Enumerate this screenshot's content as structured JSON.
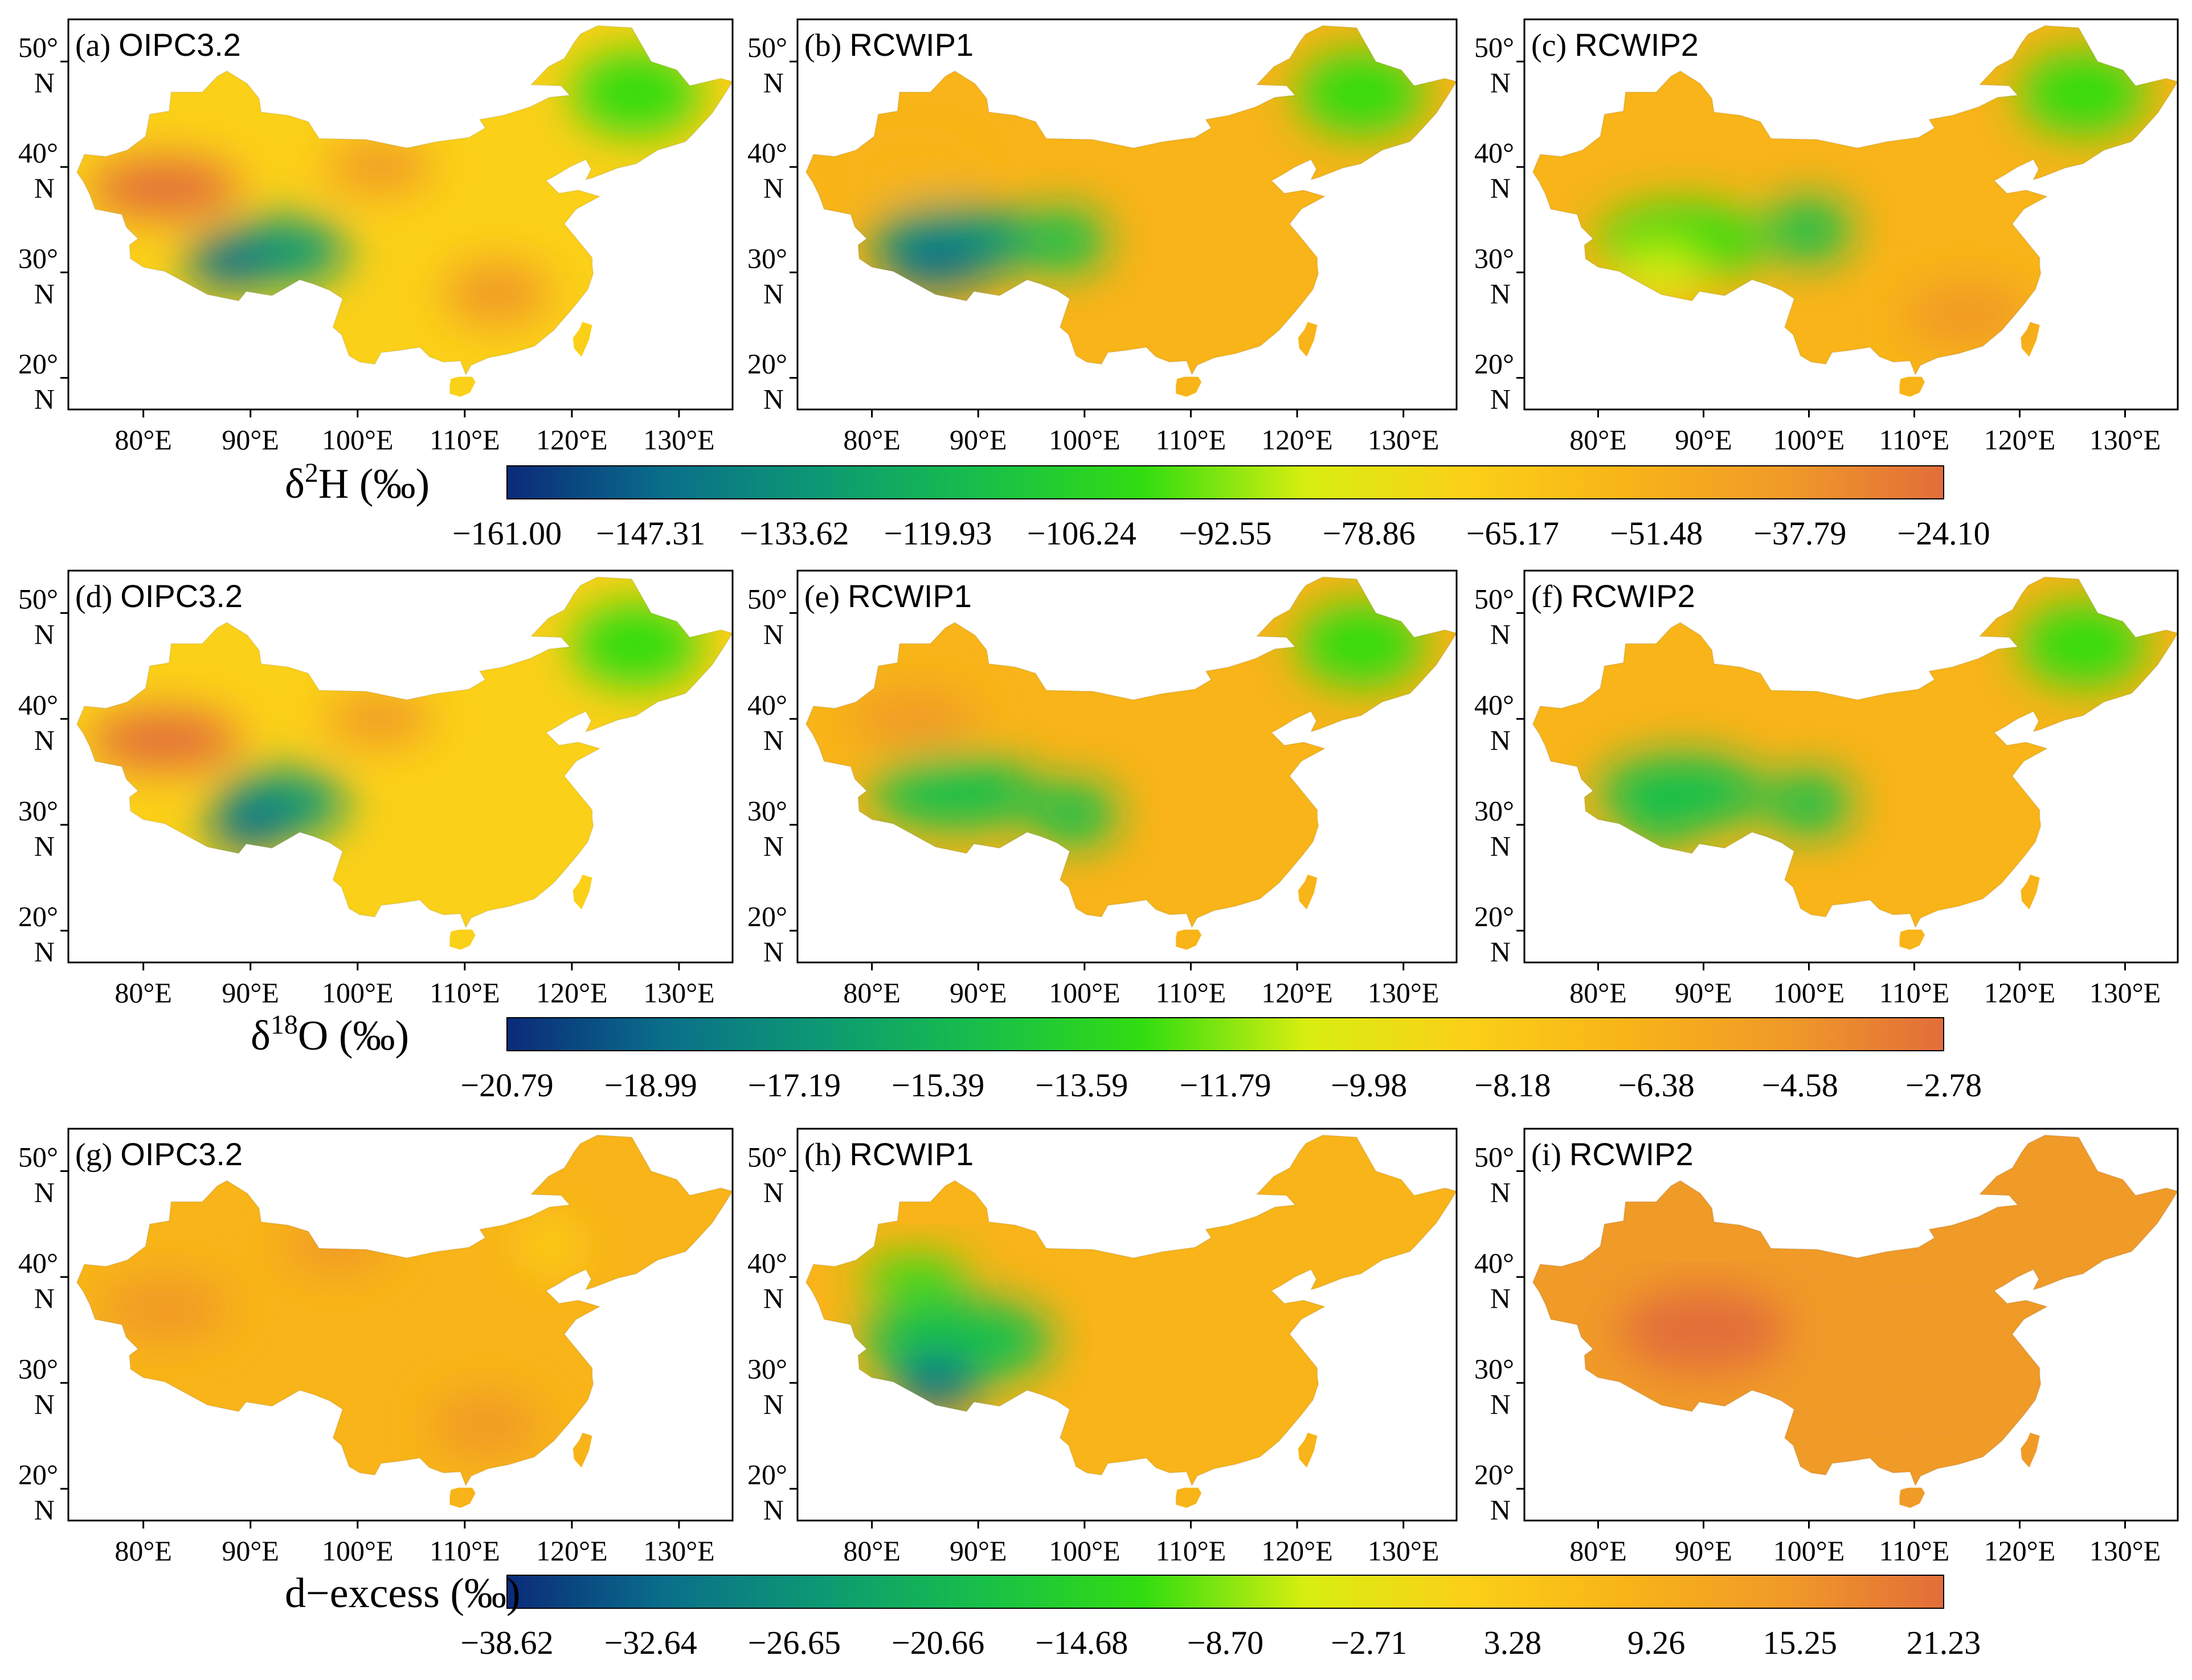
{
  "panels": [
    {
      "letter": "(a)",
      "model": "OIPC3.2",
      "variable": "d2H"
    },
    {
      "letter": "(b)",
      "model": "RCWIP1",
      "variable": "d2H"
    },
    {
      "letter": "(c)",
      "model": "RCWIP2",
      "variable": "d2H"
    },
    {
      "letter": "(d)",
      "model": "OIPC3.2",
      "variable": "d18O"
    },
    {
      "letter": "(e)",
      "model": "RCWIP1",
      "variable": "d18O"
    },
    {
      "letter": "(f)",
      "model": "RCWIP2",
      "variable": "d18O"
    },
    {
      "letter": "(g)",
      "model": "OIPC3.2",
      "variable": "dexcess"
    },
    {
      "letter": "(h)",
      "model": "RCWIP1",
      "variable": "dexcess"
    },
    {
      "letter": "(i)",
      "model": "RCWIP2",
      "variable": "dexcess"
    }
  ],
  "axes": {
    "lon_labels": [
      "80°E",
      "90°E",
      "100°E",
      "110°E",
      "120°E",
      "130°E"
    ],
    "lon_values": [
      80,
      90,
      100,
      110,
      120,
      130
    ],
    "lat_deg": [
      "50°",
      "40°",
      "30°",
      "20°"
    ],
    "lat_hemi": "N",
    "lat_values": [
      50,
      40,
      30,
      20
    ],
    "lon_range": [
      73,
      135
    ],
    "lat_range": [
      17,
      54
    ]
  },
  "colorbars": [
    {
      "variable": "d2H",
      "label_prefix": "δ",
      "label_sup": "2",
      "label_suffix": "H (‰)",
      "ticks": [
        "−161.00",
        "−147.31",
        "−133.62",
        "−119.93",
        "−106.24",
        "−92.55",
        "−78.86",
        "−65.17",
        "−51.48",
        "−37.79",
        "−24.10"
      ]
    },
    {
      "variable": "d18O",
      "label_prefix": "δ",
      "label_sup": "18",
      "label_suffix": "O (‰)",
      "ticks": [
        "−20.79",
        "−18.99",
        "−17.19",
        "−15.39",
        "−13.59",
        "−11.79",
        "−9.98",
        "−8.18",
        "−6.38",
        "−4.58",
        "−2.78"
      ]
    },
    {
      "variable": "dexcess",
      "label_prefix": "d−excess (‰)",
      "label_sup": "",
      "label_suffix": "",
      "ticks": [
        "−38.62",
        "−32.64",
        "−26.65",
        "−20.66",
        "−14.68",
        "−8.70",
        "−2.71",
        "3.28",
        "9.26",
        "15.25",
        "21.23"
      ]
    }
  ],
  "colormap": [
    "#0b2a7a",
    "#0a6f8a",
    "#0d9a72",
    "#18c048",
    "#33dd10",
    "#d8ee10",
    "#fbd018",
    "#f8b418",
    "#f09a28",
    "#e26e3a"
  ]
}
